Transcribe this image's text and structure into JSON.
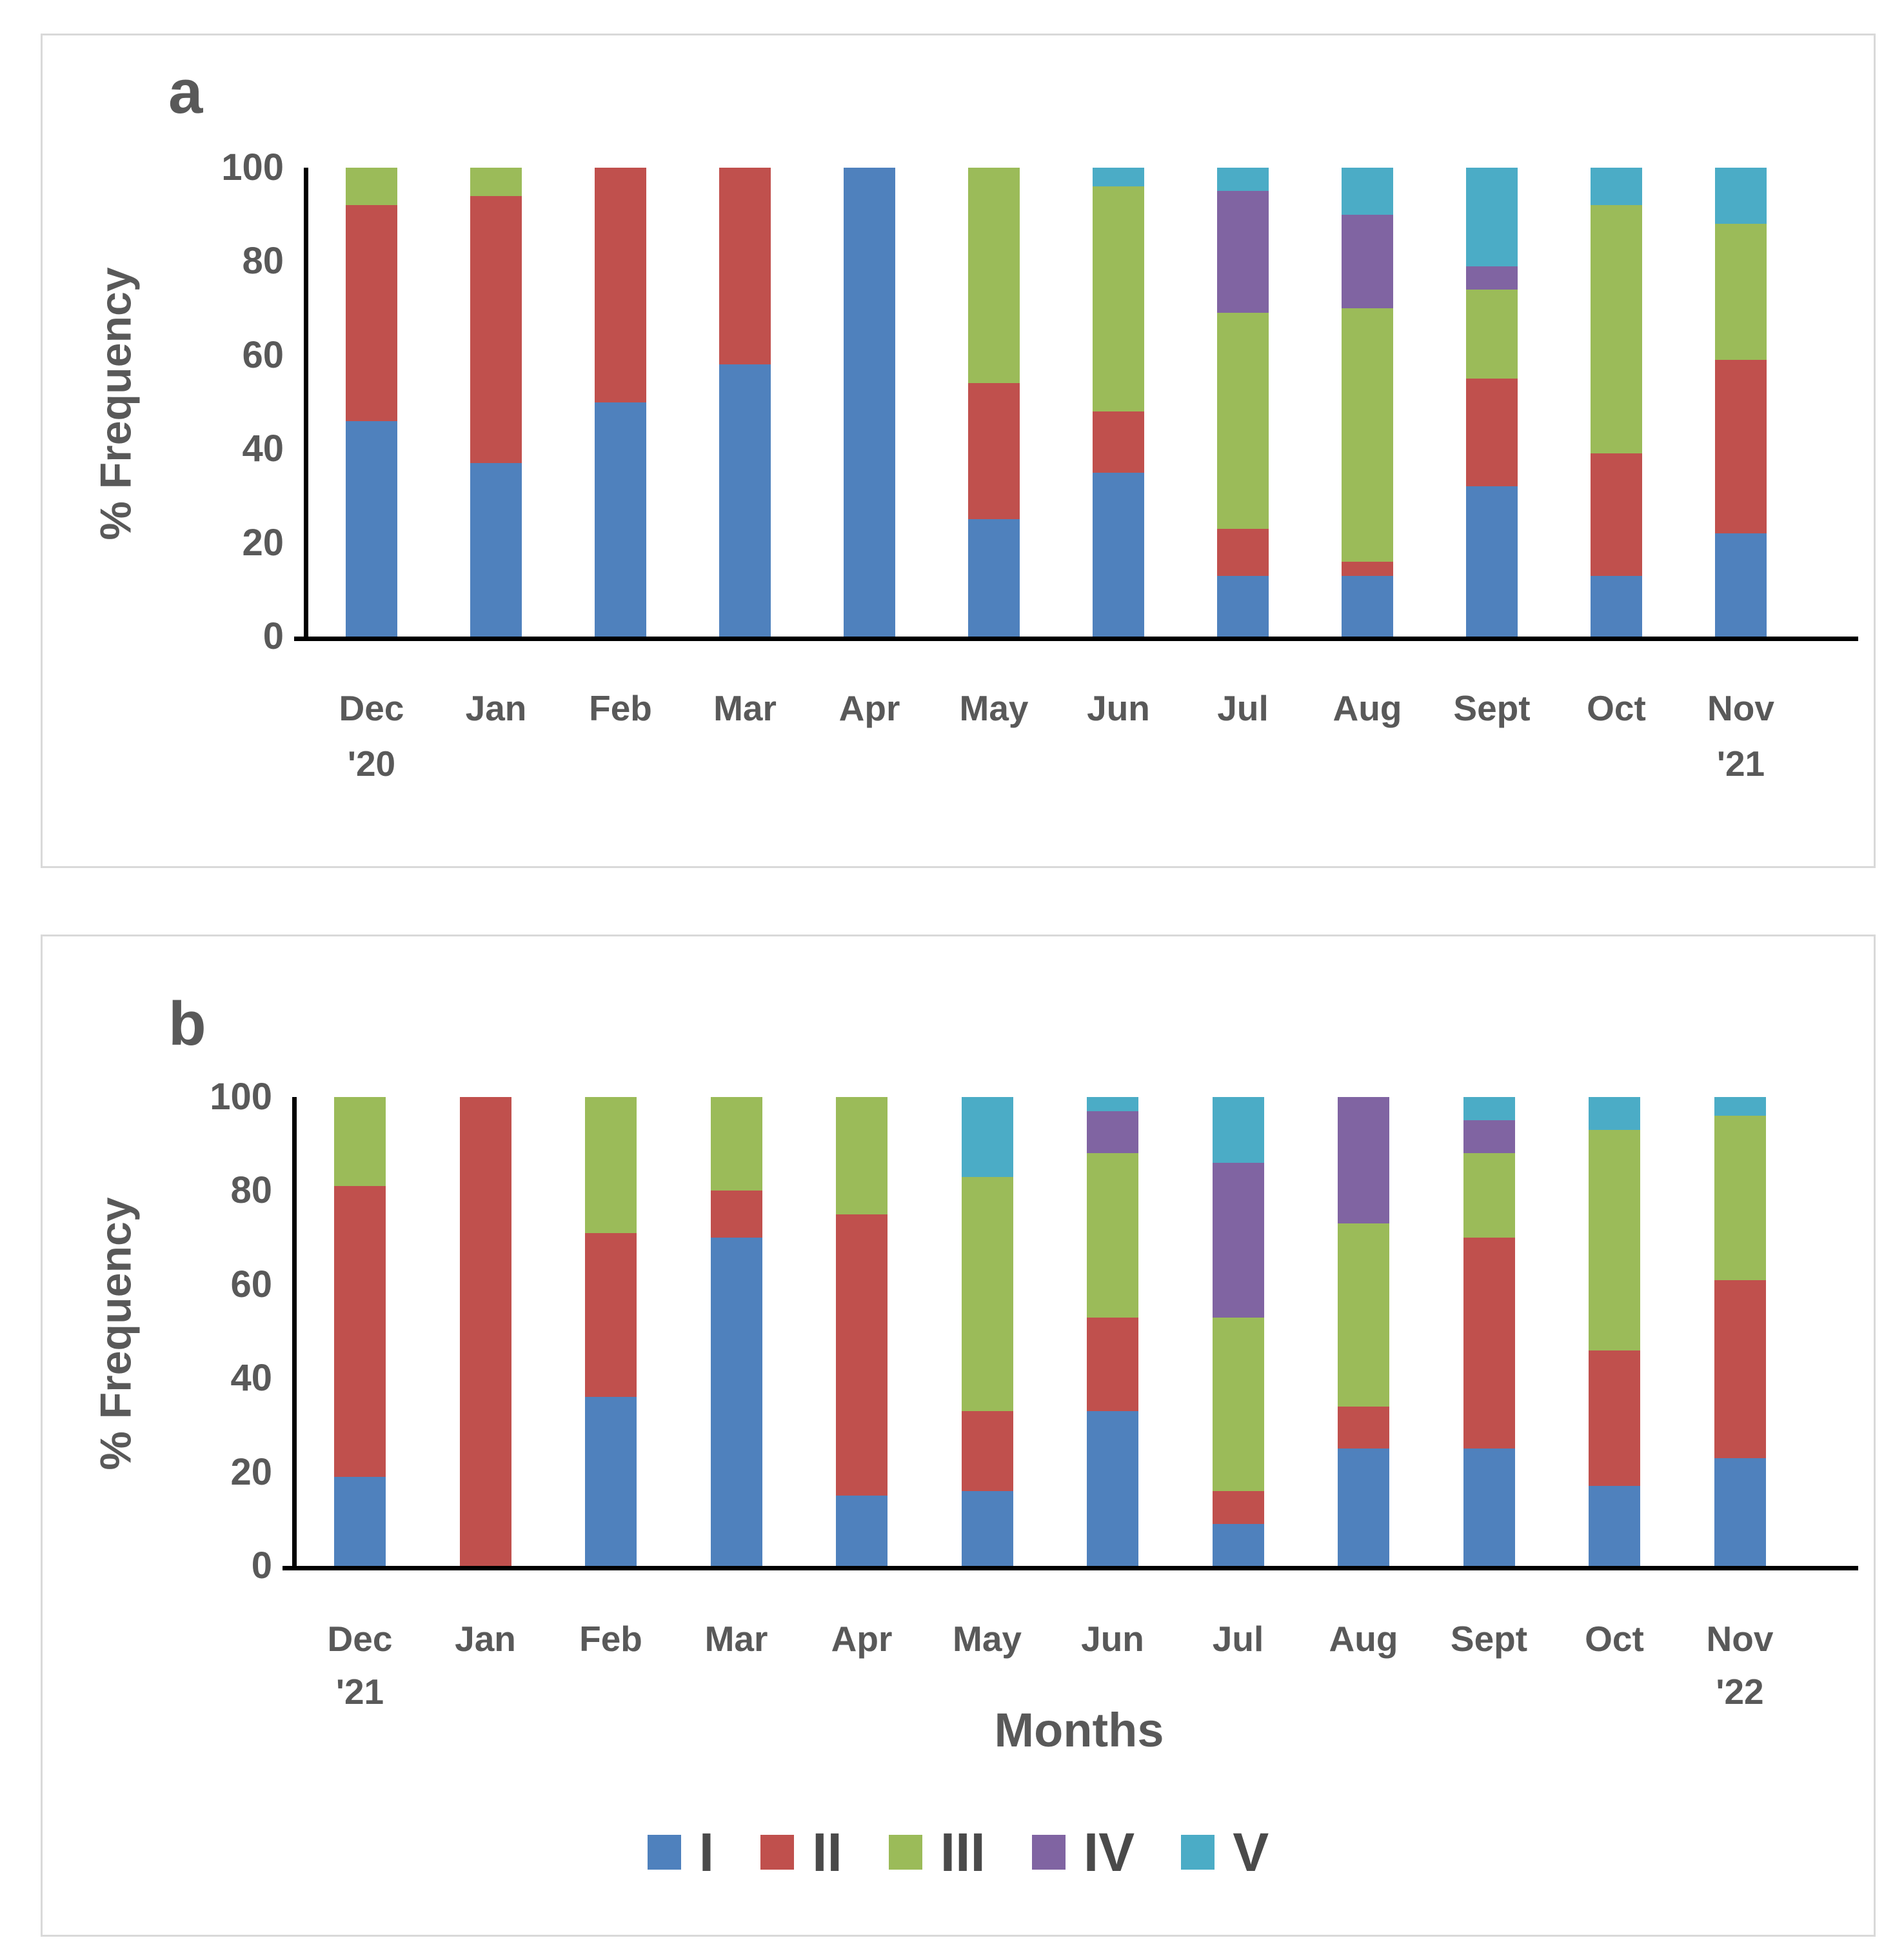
{
  "panel_a": {
    "label": "a"
  },
  "panel_b": {
    "label": "b"
  },
  "axes": {
    "y_title": "% Frequency",
    "x_title": "Months"
  },
  "colors": {
    "series_I": "#4F81BD",
    "series_II": "#C0504D",
    "series_III": "#9BBB59",
    "series_IV": "#8064A2",
    "series_V": "#4BACC6",
    "text": "#595959",
    "axis": "#000000",
    "panel_border": "#D9D9D9"
  },
  "chart_data": [
    {
      "type": "bar",
      "stacked": true,
      "title": "a",
      "xlabel": "",
      "ylabel": "% Frequency",
      "ylim": [
        0,
        100
      ],
      "y_ticks": [
        0,
        20,
        40,
        60,
        80,
        100
      ],
      "grid": false,
      "legend_position": "none",
      "categories": [
        "Dec '20",
        "Jan",
        "Feb",
        "Mar",
        "Apr",
        "May",
        "Jun",
        "Jul",
        "Aug",
        "Sept",
        "Oct",
        "Nov '21"
      ],
      "series": [
        {
          "name": "I",
          "color": "#4F81BD",
          "values": [
            46,
            37,
            50,
            58,
            100,
            25,
            35,
            13,
            13,
            32,
            13,
            22
          ]
        },
        {
          "name": "II",
          "color": "#C0504D",
          "values": [
            46,
            57,
            50,
            42,
            0,
            29,
            13,
            10,
            3,
            23,
            26,
            37
          ]
        },
        {
          "name": "III",
          "color": "#9BBB59",
          "values": [
            8,
            6,
            0,
            0,
            0,
            46,
            48,
            46,
            54,
            19,
            53,
            29
          ]
        },
        {
          "name": "IV",
          "color": "#8064A2",
          "values": [
            0,
            0,
            0,
            0,
            0,
            0,
            0,
            26,
            20,
            5,
            0,
            0
          ]
        },
        {
          "name": "V",
          "color": "#4BACC6",
          "values": [
            0,
            0,
            0,
            0,
            0,
            0,
            4,
            5,
            10,
            21,
            8,
            12
          ]
        }
      ]
    },
    {
      "type": "bar",
      "stacked": true,
      "title": "b",
      "xlabel": "Months",
      "ylabel": "% Frequency",
      "ylim": [
        0,
        100
      ],
      "y_ticks": [
        0,
        20,
        40,
        60,
        80,
        100
      ],
      "grid": false,
      "legend_position": "bottom",
      "categories": [
        "Dec '21",
        "Jan",
        "Feb",
        "Mar",
        "Apr",
        "May",
        "Jun",
        "Jul",
        "Aug",
        "Sept",
        "Oct",
        "Nov '22"
      ],
      "series": [
        {
          "name": "I",
          "color": "#4F81BD",
          "values": [
            19,
            0,
            36,
            70,
            15,
            16,
            33,
            9,
            25,
            25,
            17,
            23
          ]
        },
        {
          "name": "II",
          "color": "#C0504D",
          "values": [
            62,
            100,
            35,
            10,
            60,
            17,
            20,
            7,
            9,
            45,
            29,
            38
          ]
        },
        {
          "name": "III",
          "color": "#9BBB59",
          "values": [
            19,
            0,
            29,
            20,
            25,
            50,
            35,
            37,
            39,
            18,
            47,
            35
          ]
        },
        {
          "name": "IV",
          "color": "#8064A2",
          "values": [
            0,
            0,
            0,
            0,
            0,
            0,
            9,
            33,
            27,
            7,
            0,
            0
          ]
        },
        {
          "name": "V",
          "color": "#4BACC6",
          "values": [
            0,
            0,
            0,
            0,
            0,
            17,
            3,
            14,
            0,
            5,
            7,
            4
          ]
        }
      ]
    }
  ]
}
